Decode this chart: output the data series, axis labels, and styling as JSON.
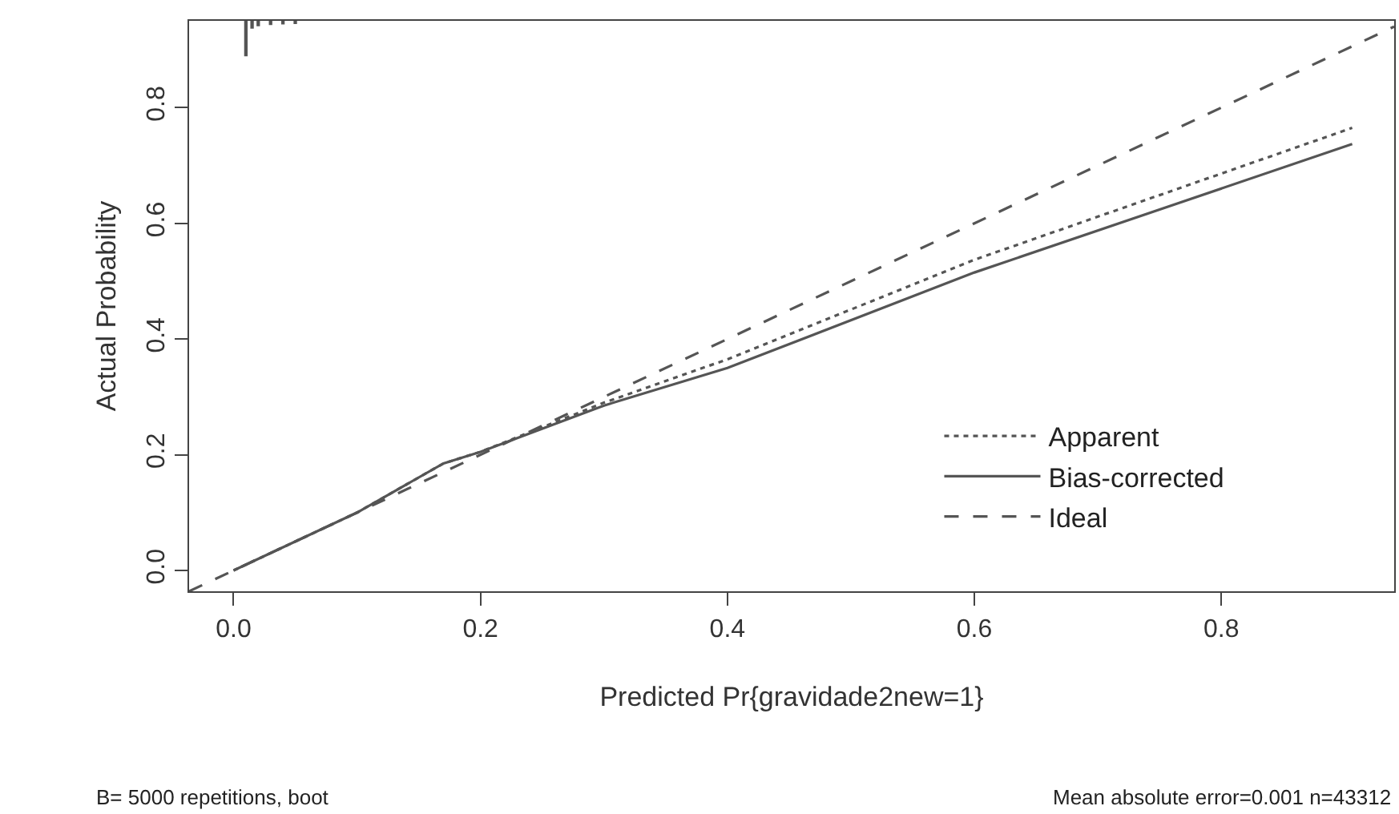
{
  "chart_data": {
    "type": "line",
    "xlabel": "Predicted Pr{gravidade2new=1}",
    "ylabel": "Actual Probability",
    "xlim": [
      -0.036,
      0.94
    ],
    "ylim": [
      -0.036,
      0.95
    ],
    "xticks": [
      {
        "value": 0,
        "label": "0.0"
      },
      0.2,
      0.4,
      0.6,
      0.8
    ],
    "yticks": [
      {
        "value": 0,
        "label": "0.0"
      },
      0.2,
      0.4,
      0.6,
      0.8
    ],
    "legend": "bottom right",
    "annotations": [
      "B= 5000 repetitions, boot",
      "Mean absolute error=0.001 n=43312"
    ],
    "series": [
      {
        "name": "Apparent",
        "color": "#555555",
        "line_style": "dotted",
        "x": [
          0,
          0.1,
          0.17,
          0.2,
          0.3,
          0.4,
          0.6,
          0.906
        ],
        "values": [
          0,
          0.1,
          0.185,
          0.205,
          0.29,
          0.365,
          0.537,
          0.765
        ]
      },
      {
        "name": "Bias-corrected",
        "color": "#555555",
        "line_style": "solid",
        "x": [
          0,
          0.1,
          0.17,
          0.2,
          0.3,
          0.4,
          0.6,
          0.906
        ],
        "values": [
          0,
          0.1,
          0.185,
          0.205,
          0.285,
          0.35,
          0.515,
          0.737
        ]
      },
      {
        "name": "Ideal",
        "color": "#555555",
        "line_style": "dashed",
        "x": [
          -0.036,
          0.94
        ],
        "values": [
          -0.036,
          0.94
        ]
      },
      {
        "type": "bar",
        "color": "#555555",
        "x": [
          0.01,
          0.015,
          0.02,
          0.03,
          0.04,
          0.05
        ],
        "base": [
          0.95,
          0.95,
          0.95,
          0.95,
          0.95,
          0.95
        ],
        "values": [
          -0.06,
          -0.012,
          -0.008,
          -0.006,
          -0.005,
          -0.004
        ]
      }
    ]
  }
}
